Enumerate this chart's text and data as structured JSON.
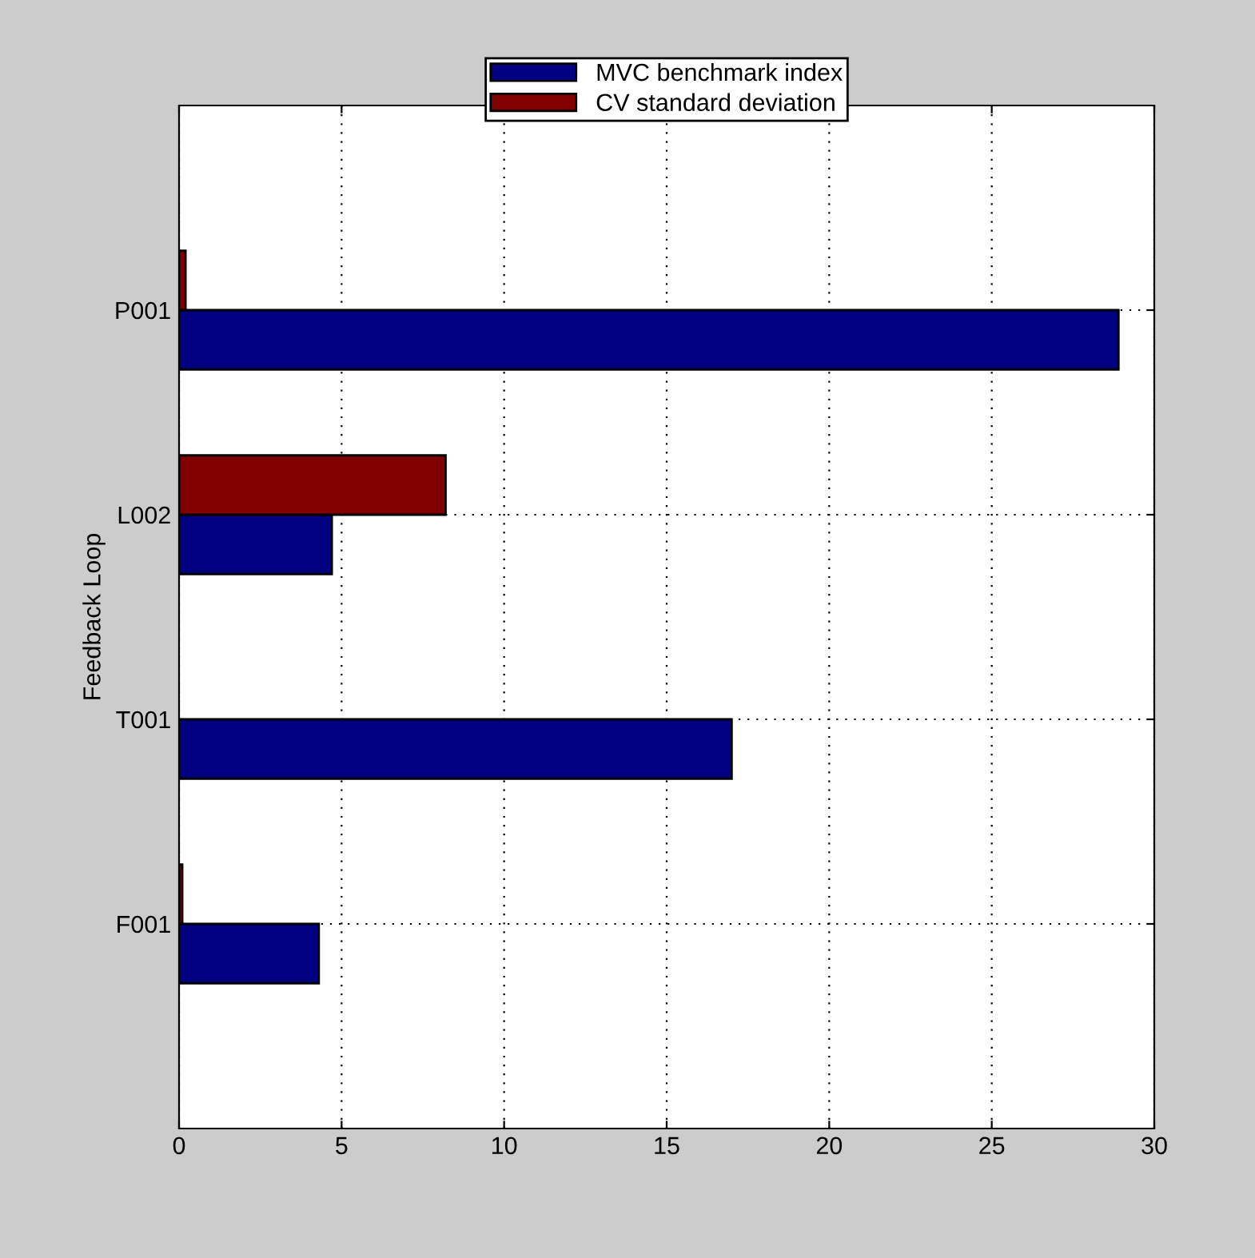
{
  "chart_data": {
    "type": "bar",
    "orientation": "horizontal",
    "ylabel": "Feedback Loop",
    "categories": [
      "P001",
      "L002",
      "T001",
      "F001"
    ],
    "series": [
      {
        "name": "MVC benchmark index",
        "color": "#000080",
        "values": [
          28.9,
          4.7,
          17.0,
          4.3
        ]
      },
      {
        "name": "CV standard deviation",
        "color": "#800000",
        "values": [
          0.2,
          8.2,
          null,
          0.1
        ]
      }
    ],
    "xlim": [
      0,
      30
    ],
    "xticks": [
      0,
      5,
      10,
      15,
      20,
      25,
      30
    ],
    "grid": true,
    "legend": "top"
  }
}
